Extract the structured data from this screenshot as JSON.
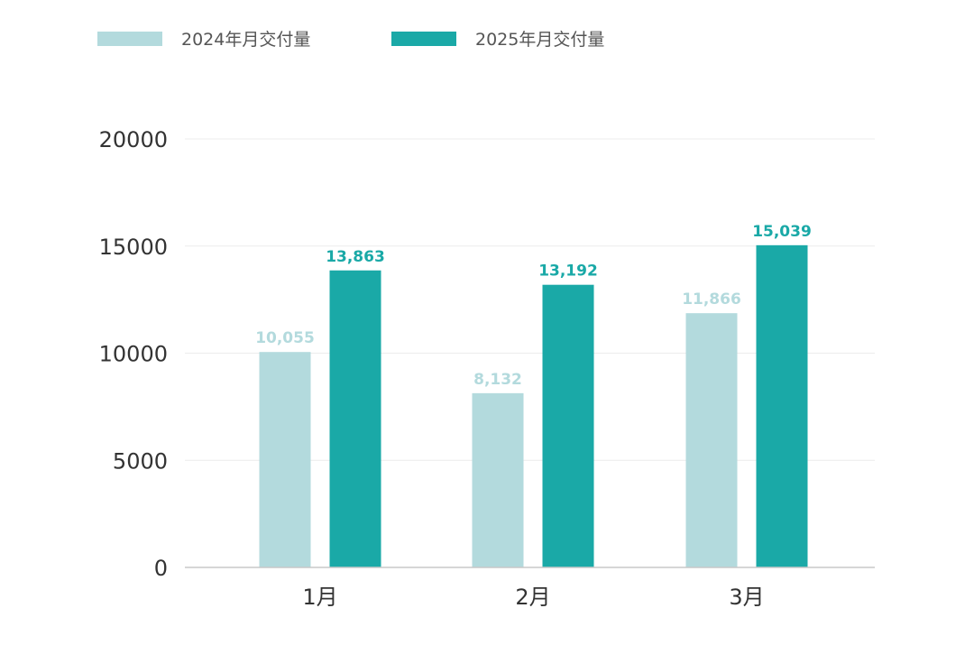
{
  "chart_data": {
    "type": "bar",
    "title": "",
    "xlabel": "",
    "ylabel": "",
    "categories": [
      "1月",
      "2月",
      "3月"
    ],
    "series": [
      {
        "name": "2024年月交付量",
        "color": "#b3dadd",
        "values": [
          10055,
          8132,
          11866
        ],
        "labels": [
          "10,055",
          "8,132",
          "11,866"
        ]
      },
      {
        "name": "2025年月交付量",
        "color": "#1aa9a7",
        "values": [
          13863,
          13192,
          15039
        ],
        "labels": [
          "13,863",
          "13,192",
          "15,039"
        ]
      }
    ],
    "ylim": [
      0,
      20000
    ],
    "yticks": [
      "0",
      "5000",
      "10000",
      "15000",
      "20000"
    ],
    "ytick_values": [
      0,
      5000,
      10000,
      15000,
      20000
    ],
    "grid": true,
    "legend_position": "top-left"
  }
}
